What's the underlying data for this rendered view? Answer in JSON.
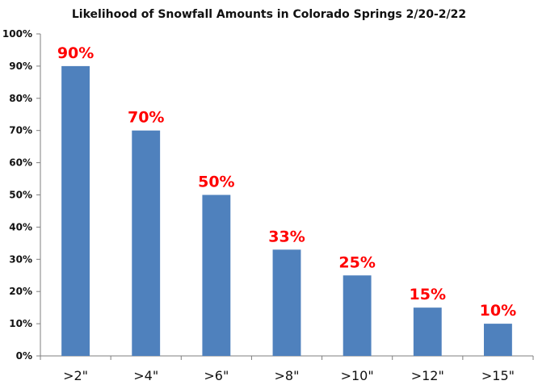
{
  "chart_data": {
    "type": "bar",
    "title": "Likelihood of Snowfall Amounts in Colorado Springs 2/20-2/22",
    "xlabel": "",
    "ylabel": "",
    "categories": [
      ">2\"",
      ">4\"",
      ">6\"",
      ">8\"",
      ">10\"",
      ">12\"",
      ">15\""
    ],
    "values": [
      90,
      70,
      50,
      33,
      25,
      15,
      10
    ],
    "data_labels": [
      "90%",
      "70%",
      "50%",
      "33%",
      "25%",
      "15%",
      "10%"
    ],
    "ylim": [
      0,
      100
    ],
    "yticks": [
      0,
      10,
      20,
      30,
      40,
      50,
      60,
      70,
      80,
      90,
      100
    ],
    "ytick_labels": [
      "0%",
      "10%",
      "20%",
      "30%",
      "40%",
      "50%",
      "60%",
      "70%",
      "80%",
      "90%",
      "100%"
    ],
    "grid": false,
    "legend": "none",
    "colors": {
      "bar": "#4f81bd",
      "data_label": "#ff0000",
      "axis": "#7f7f7f"
    }
  }
}
